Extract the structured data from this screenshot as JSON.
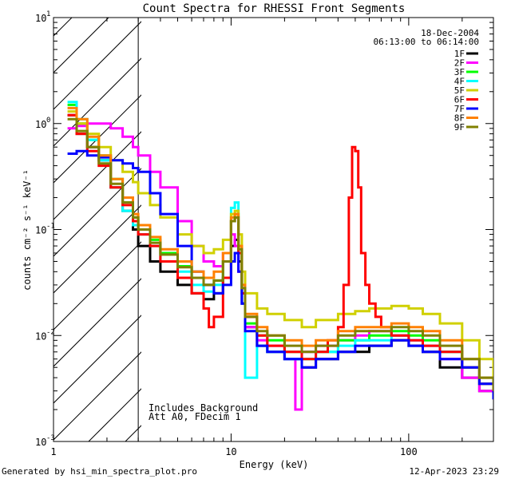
{
  "chart_data": {
    "type": "line",
    "title": "Count Spectra for RHESSI Front Segments",
    "xlabel": "Energy (keV)",
    "ylabel": "counts cm⁻² s⁻¹ keV⁻¹",
    "xscale": "log",
    "yscale": "log",
    "xlim": [
      1,
      300
    ],
    "ylim": [
      0.001,
      10
    ],
    "x_ticks": [
      {
        "value": 1,
        "label": "1"
      },
      {
        "value": 10,
        "label": "10"
      },
      {
        "value": 100,
        "label": "100"
      }
    ],
    "y_ticks": [
      {
        "value": 0.001,
        "base": "10",
        "exp": "-3"
      },
      {
        "value": 0.01,
        "base": "10",
        "exp": "-2"
      },
      {
        "value": 0.1,
        "base": "10",
        "exp": "-1"
      },
      {
        "value": 1,
        "base": "10",
        "exp": "0"
      },
      {
        "value": 10,
        "base": "10",
        "exp": "1"
      }
    ],
    "hatched_region": {
      "xmin": 1,
      "xmax": 3
    },
    "info": {
      "date": "18-Dec-2004",
      "time_range": "06:13:00 to 06:14:00"
    },
    "annotations": [
      "Includes Background",
      "Att A0, FDecim 1"
    ],
    "footer_left": "Generated by hsi_min_spectra_plot.pro",
    "footer_right": "12-Apr-2023 23:29",
    "series": [
      {
        "name": "1F",
        "color": "#000000",
        "x": [
          1.2,
          1.35,
          1.55,
          1.8,
          2.1,
          2.45,
          2.8,
          3.0,
          3.5,
          4,
          5,
          6,
          7,
          8,
          9,
          10,
          10.5,
          11,
          11.5,
          12,
          14,
          16,
          20,
          25,
          30,
          40,
          50,
          60,
          80,
          100,
          120,
          150,
          200,
          250,
          300
        ],
        "values": [
          1.2,
          0.8,
          0.6,
          0.45,
          0.25,
          0.15,
          0.1,
          0.07,
          0.05,
          0.04,
          0.03,
          0.025,
          0.022,
          0.025,
          0.035,
          0.07,
          0.08,
          0.05,
          0.02,
          0.012,
          0.008,
          0.007,
          0.006,
          0.005,
          0.006,
          0.007,
          0.007,
          0.008,
          0.009,
          0.008,
          0.007,
          0.005,
          0.004,
          0.003,
          0.0025
        ]
      },
      {
        "name": "2F",
        "color": "#ff00ff",
        "x": [
          1.2,
          1.35,
          1.55,
          1.8,
          2.1,
          2.45,
          2.8,
          3.0,
          3.5,
          4,
          5,
          6,
          7,
          8,
          9,
          10,
          10.5,
          11,
          11.5,
          12,
          14,
          16,
          20,
          23,
          25,
          30,
          40,
          50,
          60,
          80,
          100,
          120,
          150,
          200,
          250,
          300
        ],
        "values": [
          0.9,
          0.95,
          1.0,
          1.0,
          0.9,
          0.75,
          0.6,
          0.5,
          0.35,
          0.25,
          0.12,
          0.07,
          0.05,
          0.045,
          0.06,
          0.09,
          0.07,
          0.04,
          0.02,
          0.012,
          0.009,
          0.008,
          0.006,
          0.002,
          0.007,
          0.008,
          0.009,
          0.01,
          0.011,
          0.01,
          0.009,
          0.008,
          0.006,
          0.004,
          0.003,
          0.0025
        ]
      },
      {
        "name": "3F",
        "color": "#00ff00",
        "x": [
          1.2,
          1.35,
          1.55,
          1.8,
          2.1,
          2.45,
          2.8,
          3.0,
          3.5,
          4,
          5,
          6,
          7,
          8,
          9,
          10,
          10.5,
          11,
          11.5,
          12,
          14,
          16,
          20,
          25,
          30,
          40,
          50,
          60,
          80,
          100,
          120,
          150,
          200,
          250,
          300
        ],
        "values": [
          1.5,
          1.0,
          0.7,
          0.5,
          0.3,
          0.18,
          0.13,
          0.1,
          0.08,
          0.06,
          0.045,
          0.035,
          0.03,
          0.033,
          0.05,
          0.12,
          0.14,
          0.07,
          0.025,
          0.013,
          0.01,
          0.009,
          0.007,
          0.006,
          0.007,
          0.009,
          0.009,
          0.01,
          0.011,
          0.01,
          0.009,
          0.007,
          0.005,
          0.0035,
          0.0025
        ]
      },
      {
        "name": "4F",
        "color": "#00ffff",
        "x": [
          1.2,
          1.35,
          1.55,
          1.8,
          2.1,
          2.45,
          2.8,
          3.0,
          3.5,
          4,
          5,
          6,
          7,
          8,
          9,
          10,
          10.5,
          11,
          11.5,
          12,
          14,
          16,
          20,
          25,
          30,
          40,
          50,
          60,
          80,
          100,
          120,
          150,
          200,
          250,
          300
        ],
        "values": [
          1.6,
          1.1,
          0.7,
          0.45,
          0.25,
          0.15,
          0.11,
          0.09,
          0.07,
          0.05,
          0.04,
          0.03,
          0.026,
          0.03,
          0.05,
          0.16,
          0.18,
          0.06,
          0.02,
          0.004,
          0.008,
          0.007,
          0.006,
          0.006,
          0.007,
          0.008,
          0.009,
          0.009,
          0.01,
          0.009,
          0.008,
          0.007,
          0.005,
          0.0035,
          0.0025
        ]
      },
      {
        "name": "5F",
        "color": "#d0d000",
        "x": [
          1.2,
          1.35,
          1.55,
          1.8,
          2.1,
          2.45,
          2.8,
          3.0,
          3.5,
          4,
          5,
          6,
          7,
          8,
          9,
          10,
          10.5,
          11,
          11.5,
          12,
          14,
          16,
          20,
          25,
          30,
          40,
          50,
          60,
          80,
          100,
          120,
          150,
          200,
          250,
          300
        ],
        "values": [
          1.3,
          1.0,
          0.8,
          0.6,
          0.45,
          0.35,
          0.28,
          0.22,
          0.17,
          0.13,
          0.09,
          0.07,
          0.06,
          0.065,
          0.08,
          0.14,
          0.15,
          0.09,
          0.04,
          0.025,
          0.018,
          0.016,
          0.014,
          0.012,
          0.014,
          0.016,
          0.017,
          0.018,
          0.019,
          0.018,
          0.016,
          0.013,
          0.009,
          0.006,
          0.004
        ]
      },
      {
        "name": "6F",
        "color": "#ff0000",
        "x": [
          1.2,
          1.35,
          1.55,
          1.8,
          2.1,
          2.45,
          2.8,
          3.0,
          3.5,
          4,
          5,
          6,
          7,
          7.5,
          8,
          9,
          10,
          10.5,
          11,
          11.5,
          12,
          14,
          16,
          20,
          25,
          30,
          35,
          40,
          43,
          46,
          48,
          50,
          52,
          54,
          57,
          60,
          65,
          70,
          80,
          100,
          120,
          150,
          200,
          250,
          300
        ],
        "values": [
          1.2,
          0.8,
          0.55,
          0.4,
          0.25,
          0.17,
          0.12,
          0.09,
          0.07,
          0.05,
          0.035,
          0.025,
          0.018,
          0.012,
          0.015,
          0.035,
          0.12,
          0.13,
          0.06,
          0.025,
          0.015,
          0.01,
          0.008,
          0.007,
          0.006,
          0.007,
          0.009,
          0.012,
          0.03,
          0.2,
          0.6,
          0.55,
          0.25,
          0.06,
          0.03,
          0.02,
          0.015,
          0.012,
          0.01,
          0.009,
          0.008,
          0.007,
          0.005,
          0.0035,
          0.0025
        ]
      },
      {
        "name": "7F",
        "color": "#0000ff",
        "x": [
          1.2,
          1.35,
          1.55,
          1.8,
          2.1,
          2.45,
          2.8,
          3.0,
          3.5,
          4,
          5,
          6,
          7,
          8,
          9,
          10,
          10.5,
          11,
          11.5,
          12,
          14,
          16,
          20,
          25,
          30,
          40,
          50,
          60,
          80,
          100,
          120,
          150,
          200,
          250,
          300
        ],
        "values": [
          0.52,
          0.55,
          0.5,
          0.48,
          0.45,
          0.42,
          0.38,
          0.35,
          0.22,
          0.14,
          0.07,
          0.04,
          0.03,
          0.025,
          0.03,
          0.05,
          0.06,
          0.04,
          0.02,
          0.011,
          0.008,
          0.007,
          0.006,
          0.005,
          0.006,
          0.007,
          0.008,
          0.008,
          0.009,
          0.008,
          0.007,
          0.006,
          0.005,
          0.0035,
          0.0025
        ]
      },
      {
        "name": "8F",
        "color": "#ff8000",
        "x": [
          1.2,
          1.35,
          1.55,
          1.8,
          2.1,
          2.45,
          2.8,
          3.0,
          3.5,
          4,
          5,
          6,
          7,
          8,
          9,
          10,
          10.5,
          11,
          11.5,
          12,
          14,
          16,
          20,
          25,
          30,
          40,
          50,
          60,
          80,
          100,
          120,
          150,
          200,
          250,
          300
        ],
        "values": [
          1.4,
          1.1,
          0.75,
          0.5,
          0.3,
          0.2,
          0.14,
          0.11,
          0.085,
          0.065,
          0.05,
          0.04,
          0.035,
          0.04,
          0.06,
          0.13,
          0.14,
          0.07,
          0.03,
          0.016,
          0.012,
          0.01,
          0.009,
          0.008,
          0.009,
          0.011,
          0.012,
          0.012,
          0.013,
          0.012,
          0.011,
          0.009,
          0.006,
          0.004,
          0.003
        ]
      },
      {
        "name": "9F",
        "color": "#808000",
        "x": [
          1.2,
          1.35,
          1.55,
          1.8,
          2.1,
          2.45,
          2.8,
          3.0,
          3.5,
          4,
          5,
          6,
          7,
          8,
          9,
          10,
          10.5,
          11,
          11.5,
          12,
          14,
          16,
          20,
          25,
          30,
          40,
          50,
          60,
          80,
          100,
          120,
          150,
          200,
          250,
          300
        ],
        "values": [
          1.1,
          0.85,
          0.6,
          0.42,
          0.27,
          0.18,
          0.13,
          0.1,
          0.075,
          0.058,
          0.044,
          0.035,
          0.03,
          0.033,
          0.05,
          0.12,
          0.13,
          0.065,
          0.028,
          0.015,
          0.011,
          0.01,
          0.008,
          0.007,
          0.008,
          0.01,
          0.011,
          0.011,
          0.012,
          0.011,
          0.01,
          0.008,
          0.006,
          0.004,
          0.003
        ]
      }
    ]
  }
}
